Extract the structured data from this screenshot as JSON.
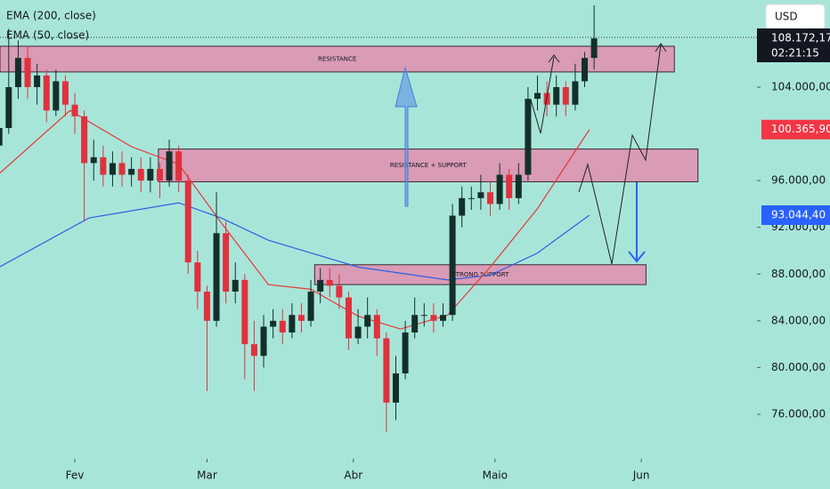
{
  "chart_data": {
    "type": "candlestick",
    "currency": "USD",
    "countdown": "02:21:15",
    "last_price_label": "108.172,17",
    "up_color": "#12302a",
    "down_color": "#e0313e",
    "x": [
      -16,
      -14,
      -12,
      -10,
      -8,
      -6,
      -4,
      -2,
      0,
      2,
      4,
      6,
      8,
      10,
      12,
      14,
      16,
      18,
      20,
      22,
      24,
      26,
      28,
      30,
      32,
      34,
      36,
      38,
      40,
      42,
      44,
      46,
      48,
      50,
      52,
      54,
      56,
      58,
      60,
      62,
      64,
      66,
      68,
      70,
      72,
      74,
      76,
      78,
      80,
      82,
      84,
      86,
      88,
      90,
      92,
      94,
      96,
      98,
      100,
      102,
      104,
      106,
      108,
      110
    ],
    "open": [
      99000,
      100500,
      104000,
      106500,
      104000,
      105000,
      102000,
      104500,
      102500,
      101500,
      97500,
      98000,
      96500,
      97500,
      96500,
      97000,
      96000,
      97000,
      96000,
      98500,
      96000,
      89000,
      86500,
      84000,
      91500,
      86500,
      87500,
      82000,
      81000,
      83500,
      84000,
      83000,
      84500,
      84000,
      86500,
      87500,
      87000,
      86000,
      82500,
      83500,
      84500,
      82500,
      77000,
      79500,
      83000,
      84500,
      84500,
      84000,
      84500,
      93000,
      94500,
      94500,
      95000,
      94000,
      96500,
      94500,
      96500,
      103000,
      103500,
      102500,
      104000,
      102500,
      104500,
      106500
    ],
    "high": [
      101500,
      109000,
      108000,
      107500,
      106000,
      105500,
      105500,
      105000,
      103500,
      102000,
      99500,
      99000,
      98500,
      98500,
      98000,
      98000,
      98000,
      97500,
      99500,
      99000,
      96500,
      90000,
      87000,
      95000,
      92500,
      89000,
      88000,
      84000,
      84500,
      85000,
      85000,
      85500,
      85500,
      87500,
      88500,
      88500,
      88000,
      86500,
      85000,
      86000,
      85000,
      83000,
      81000,
      84000,
      86000,
      85500,
      85500,
      85500,
      94000,
      95500,
      95500,
      96500,
      96000,
      97500,
      97000,
      97500,
      104000,
      105000,
      104500,
      105000,
      104500,
      106000,
      107000,
      111000
    ],
    "low": [
      97000,
      100000,
      103000,
      103000,
      102500,
      101000,
      101500,
      101500,
      100000,
      92500,
      96000,
      95500,
      95500,
      95500,
      95500,
      95000,
      95000,
      94500,
      95500,
      95000,
      88000,
      85000,
      78000,
      83500,
      85500,
      85500,
      79000,
      78000,
      80000,
      82500,
      82000,
      82500,
      83000,
      83500,
      85500,
      86000,
      85000,
      81500,
      82000,
      82500,
      81000,
      74500,
      75500,
      79000,
      82500,
      83500,
      83000,
      83500,
      84000,
      92000,
      93500,
      93500,
      93000,
      93500,
      93500,
      94000,
      96000,
      102000,
      101500,
      101500,
      101500,
      102000,
      104000,
      105500
    ],
    "close": [
      100500,
      104000,
      106500,
      104000,
      105000,
      102000,
      104500,
      102500,
      101500,
      97500,
      98000,
      96500,
      97500,
      96500,
      97000,
      96000,
      97000,
      96000,
      98500,
      96000,
      89000,
      86500,
      84000,
      91500,
      86500,
      87500,
      82000,
      81000,
      83500,
      84000,
      83000,
      84500,
      84000,
      86500,
      87500,
      87000,
      86000,
      82500,
      83500,
      84500,
      82500,
      77000,
      79500,
      83000,
      84500,
      84500,
      84000,
      84500,
      93000,
      94500,
      94500,
      95000,
      94000,
      96500,
      94500,
      96500,
      103000,
      103500,
      102500,
      104000,
      102500,
      104500,
      106500,
      108172.17
    ],
    "series": [
      {
        "name": "EMA (200, close)",
        "color": "#2f5fe0",
        "label_color": "#2962ff",
        "x": [
          -16,
          3,
          22,
          31,
          41,
          60,
          79,
          88,
          98,
          109
        ],
        "values": [
          88600,
          92800,
          94100,
          92800,
          90900,
          88600,
          87500,
          87900,
          89800,
          93044.4
        ],
        "last_label": "93.044,40"
      },
      {
        "name": "EMA (50, close)",
        "color": "#e53935",
        "label_color": "#f23645",
        "x": [
          -16,
          -1,
          12,
          22,
          31,
          41,
          50,
          60,
          69,
          79,
          88,
          98,
          109
        ],
        "values": [
          96600,
          102000,
          98900,
          97400,
          92400,
          87100,
          86700,
          84400,
          83300,
          84500,
          88600,
          93600,
          100365.9
        ],
        "last_label": "100.365,90"
      }
    ],
    "zones": [
      {
        "label": "RESISTANCE",
        "from": 105300,
        "to": 107500,
        "start": -16,
        "end": 127
      },
      {
        "label": "RESISTANCE + SUPPORT",
        "from": 95900,
        "to": 98700,
        "start": 17.7,
        "end": 132
      },
      {
        "label": "STRONG SUPPORT",
        "from": 87100,
        "to": 88800,
        "start": 50.8,
        "end": 121
      }
    ],
    "xlim": [
      -15.85,
      144.5
    ],
    "ylim": [
      72650,
      111456
    ],
    "xticks": [
      {
        "value": 0,
        "label": "Fev"
      },
      {
        "value": 28,
        "label": "Mar"
      },
      {
        "value": 59,
        "label": "Abr"
      },
      {
        "value": 89,
        "label": "Maio"
      },
      {
        "value": 120,
        "label": "Jun"
      }
    ],
    "yticks": [
      {
        "value": 76000,
        "label": "76.000,00"
      },
      {
        "value": 80000,
        "label": "80.000,00"
      },
      {
        "value": 84000,
        "label": "84.000,00"
      },
      {
        "value": 88000,
        "label": "88.000,00"
      },
      {
        "value": 92000,
        "label": "92.000,00"
      },
      {
        "value": 96000,
        "label": "96.000,00"
      },
      {
        "value": 104000,
        "label": "104.000,00"
      }
    ]
  }
}
